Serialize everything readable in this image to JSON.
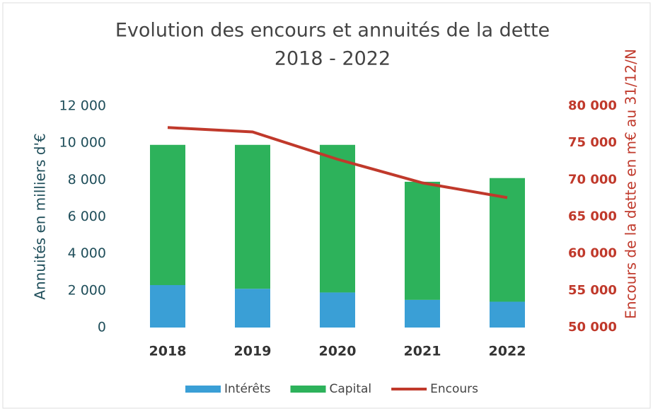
{
  "chart_data": {
    "type": "stacked-bar-line",
    "title": "Evolution des encours et annuités de la dette",
    "subtitle": "2018 - 2022",
    "ylabel": "Annuités en milliers d'€",
    "y2label": "Encours de la dette en m€ au 31/12/N",
    "categories": [
      "2018",
      "2019",
      "2020",
      "2021",
      "2022"
    ],
    "series": [
      {
        "name": "Intérêts",
        "color": "#3a9fd6",
        "values": [
          2300,
          2100,
          1900,
          1500,
          1400
        ]
      },
      {
        "name": "Capital",
        "color": "#2db25b",
        "values": [
          7600,
          7800,
          8000,
          6400,
          6700
        ]
      },
      {
        "name": "Encours",
        "color": "#c0392b",
        "axis": "y2",
        "values": [
          77100,
          76500,
          72800,
          69600,
          67600
        ]
      }
    ],
    "ylim": [
      0,
      12000
    ],
    "yticks": [
      0,
      {
        "value": 2000,
        "label": "2 000"
      },
      {
        "value": 4000,
        "label": "4 000"
      },
      {
        "value": 6000,
        "label": "6 000"
      },
      {
        "value": 8000,
        "label": "8 000"
      },
      {
        "value": 10000,
        "label": "10 000"
      },
      {
        "value": 12000,
        "label": "12 000"
      }
    ],
    "y2lim": [
      50000,
      80000
    ],
    "y2ticks": [
      {
        "value": 50000,
        "label": "50 000"
      },
      {
        "value": 55000,
        "label": "55 000"
      },
      {
        "value": 60000,
        "label": "60 000"
      },
      {
        "value": 65000,
        "label": "65 000"
      },
      {
        "value": 70000,
        "label": "70 000"
      },
      {
        "value": 75000,
        "label": "75 000"
      },
      {
        "value": 80000,
        "label": "80 000"
      }
    ],
    "legend": "bottom"
  }
}
